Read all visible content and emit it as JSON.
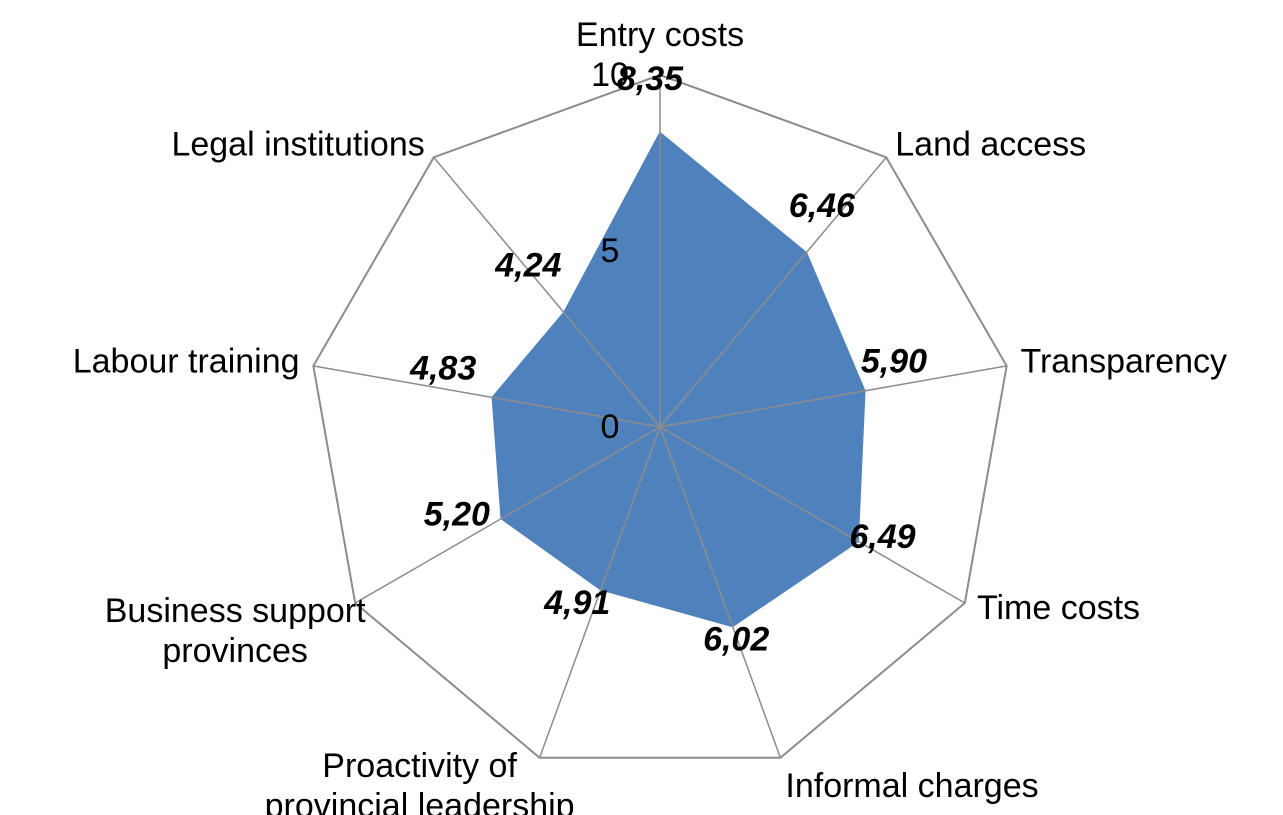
{
  "chart_data": {
    "type": "radar",
    "categories": [
      "Entry costs",
      "Land access",
      "Transparency",
      "Time costs",
      "Informal charges",
      "Proactivity of\nprovincial leadership",
      "Business support\nprovinces",
      "Labour training",
      "Legal institutions"
    ],
    "values": [
      8.35,
      6.46,
      5.9,
      6.49,
      6.02,
      4.91,
      5.2,
      4.83,
      4.24
    ],
    "value_labels": [
      "8,35",
      "6,46",
      "5,90",
      "6,49",
      "6,02",
      "4,91",
      "5,20",
      "4,83",
      "4,24"
    ],
    "color": "#4f81bd",
    "rlim": [
      0,
      10
    ],
    "rticks": [
      0,
      5,
      10
    ],
    "grid": false
  }
}
